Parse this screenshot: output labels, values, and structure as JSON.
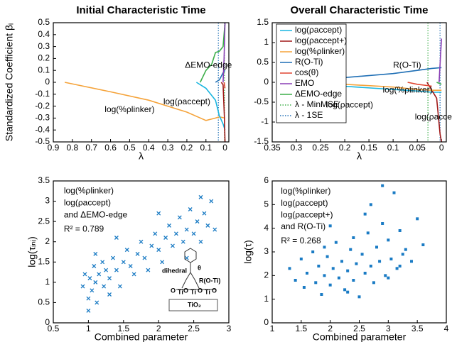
{
  "chart_data": [
    {
      "type": "line",
      "title": "Initial Characteristic Time",
      "xlabel": "λ",
      "ylabel": "Standardized Coefficient βᵢ",
      "xlim": [
        0.9,
        -0.02
      ],
      "xticks": [
        0.9,
        0.8,
        0.7,
        0.6,
        0.5,
        0.4,
        0.3,
        0.2,
        0.1,
        0
      ],
      "ylim": [
        -0.5,
        0.5
      ],
      "yticks": [
        -0.5,
        -0.4,
        -0.3,
        -0.2,
        -0.1,
        0,
        0.1,
        0.2,
        0.3,
        0.4,
        0.5
      ],
      "series": [
        {
          "color": "#f5a33a",
          "x": [
            0.84,
            0.6,
            0.4,
            0.2,
            0.1,
            0.05,
            0.03,
            0.0
          ],
          "values": [
            0,
            -0.08,
            -0.15,
            -0.25,
            -0.32,
            -0.3,
            -0.29,
            -0.3
          ]
        },
        {
          "color": "#1ab6e0",
          "x": [
            0.15,
            0.1,
            0.05,
            0.03,
            0.01,
            0.0
          ],
          "values": [
            0,
            -0.05,
            -0.15,
            -0.28,
            -0.35,
            -0.4
          ]
        },
        {
          "color": "#3cae49",
          "x": [
            0.13,
            0.1,
            0.07,
            0.05,
            0.03,
            0.01,
            0.0
          ],
          "values": [
            0,
            0.1,
            0.15,
            0.25,
            0.26,
            0.3,
            0.5
          ]
        },
        {
          "color": "#1f6fb5",
          "x": [
            0.05,
            0.03,
            0.02,
            0.01,
            0.0
          ],
          "values": [
            0,
            0.02,
            0.05,
            0.08,
            0.1
          ]
        },
        {
          "color": "#a01818",
          "x": [
            0.02,
            0.01,
            0.003,
            0.0
          ],
          "values": [
            0,
            -0.02,
            -0.3,
            -0.5
          ]
        },
        {
          "color": "#e04530",
          "x": [
            0.005,
            0.0
          ],
          "values": [
            0,
            -0.05
          ]
        },
        {
          "color": "#8a3fb5",
          "x": [
            0.01,
            0.005,
            0.0
          ],
          "values": [
            0,
            0.2,
            0.5
          ]
        }
      ],
      "vlines": [
        {
          "x": 0.035,
          "color": "#1f6fb5"
        },
        {
          "x": 0.003,
          "color": "#3cae49"
        }
      ],
      "annotations": [
        "ΔEMO-edge",
        "log(%ρlinker)",
        "log(ρaccept)"
      ]
    },
    {
      "type": "line",
      "title": "Overall Characteristic Time",
      "xlabel": "λ",
      "xlim": [
        0.35,
        -0.01
      ],
      "xticks": [
        0.35,
        0.3,
        0.25,
        0.2,
        0.15,
        0.1,
        0.05,
        0
      ],
      "ylim": [
        -1.5,
        1.5
      ],
      "yticks": [
        -1.5,
        -1,
        -0.5,
        0,
        0.5,
        1,
        1.5
      ],
      "series": [
        {
          "name": "log(ρaccept)",
          "color": "#1ab6e0",
          "x": [
            0.32,
            0.2,
            0.1,
            0.05,
            0.02,
            0.0
          ],
          "values": [
            0,
            -0.1,
            -0.18,
            -0.22,
            -0.25,
            -0.25
          ]
        },
        {
          "name": "log(ρaccept+)",
          "color": "#a01818",
          "x": [
            0.03,
            0.01,
            0.003,
            0.0
          ],
          "values": [
            0,
            -0.4,
            -1.3,
            -1.5
          ]
        },
        {
          "name": "log(%ρlinker)",
          "color": "#f5a33a",
          "x": [
            0.32,
            0.2,
            0.1,
            0.05,
            0.02,
            0.0
          ],
          "values": [
            0,
            -0.05,
            -0.12,
            -0.18,
            -0.2,
            -0.2
          ]
        },
        {
          "name": "R(O-Ti)",
          "color": "#1f6fb5",
          "x": [
            0.32,
            0.2,
            0.1,
            0.05,
            0.02,
            0.0
          ],
          "values": [
            0,
            0.12,
            0.22,
            0.3,
            0.35,
            0.37
          ]
        },
        {
          "name": "cos(θ)",
          "color": "#e04530",
          "x": [
            0.07,
            0.05,
            0.03,
            0.02
          ],
          "values": [
            0,
            -0.05,
            -0.08,
            -0.1
          ]
        },
        {
          "name": "EMO",
          "color": "#8a3fb5",
          "x": [
            0.005,
            0.0
          ],
          "values": [
            0,
            1.1
          ]
        },
        {
          "name": "ΔEMO-edge",
          "color": "#3cae49",
          "x": [
            0.01,
            0.0
          ],
          "values": [
            0,
            -0.05
          ]
        }
      ],
      "vlines": [
        {
          "name": "λ - MinMSE",
          "x": 0.028,
          "color": "#3cae49"
        },
        {
          "name": "λ - 1SE",
          "x": 0.003,
          "color": "#1f6fb5"
        }
      ],
      "annotations": [
        "R(O-Ti)",
        "log(%ρlinker)",
        "log(ρaccept)",
        "log(ρaccept+)"
      ]
    },
    {
      "type": "scatter",
      "marker": "cross",
      "color": "#1a7bc4",
      "xlabel": "Combined parameter",
      "ylabel": "log(τᵢₙᵢ)",
      "xlim": [
        0.5,
        3
      ],
      "xticks": [
        0.5,
        1,
        1.5,
        2,
        2.5,
        3
      ],
      "ylim": [
        0,
        3.5
      ],
      "yticks": [
        0,
        0.5,
        1,
        1.5,
        2,
        2.5,
        3,
        3.5
      ],
      "x": [
        0.92,
        0.95,
        1.0,
        1.02,
        1.05,
        1.08,
        1.1,
        1.12,
        1.15,
        1.2,
        1.22,
        1.25,
        1.3,
        1.35,
        1.4,
        1.45,
        1.5,
        1.55,
        1.6,
        1.65,
        1.7,
        1.75,
        1.8,
        1.85,
        1.9,
        1.95,
        2.0,
        2.05,
        2.1,
        2.15,
        2.2,
        2.25,
        2.3,
        2.35,
        2.4,
        2.45,
        2.5,
        2.55,
        2.6,
        2.65,
        2.7,
        2.75,
        2.8,
        1.0,
        1.4,
        2.0,
        1.1,
        2.4,
        1.3,
        2.6
      ],
      "values": [
        0.9,
        1.2,
        0.6,
        1.1,
        0.8,
        1.4,
        1.0,
        0.5,
        1.2,
        1.5,
        0.9,
        1.3,
        1.1,
        1.6,
        1.3,
        0.9,
        1.5,
        1.8,
        1.4,
        1.2,
        1.7,
        2.0,
        1.6,
        1.3,
        1.9,
        2.2,
        1.8,
        1.5,
        2.1,
        2.4,
        1.9,
        2.2,
        2.6,
        2.0,
        2.3,
        2.8,
        2.2,
        2.5,
        2.0,
        2.7,
        2.4,
        3.0,
        2.3,
        0.3,
        2.1,
        2.7,
        1.7,
        1.6,
        0.7,
        3.1
      ],
      "annotations": [
        "log(%ρlinker)",
        "log(ρaccept)",
        "and ΔEMO-edge",
        "R² = 0.789"
      ],
      "inset_labels": [
        "dihedral",
        "θ",
        "R(O-Ti)",
        "O",
        "Ti",
        "O",
        "Ti",
        "O",
        "Ti",
        "O",
        "TiO₂"
      ]
    },
    {
      "type": "scatter",
      "marker": "square",
      "color": "#1a7bc4",
      "xlabel": "Combined parameter",
      "ylabel": "log(τ)",
      "xlim": [
        1,
        4
      ],
      "xticks": [
        1,
        1.5,
        2,
        2.5,
        3,
        3.5,
        4
      ],
      "ylim": [
        0,
        6
      ],
      "yticks": [
        0,
        1,
        2,
        3,
        4,
        5,
        6
      ],
      "x": [
        1.3,
        1.4,
        1.5,
        1.55,
        1.6,
        1.7,
        1.75,
        1.8,
        1.85,
        1.9,
        1.95,
        2.0,
        2.05,
        2.1,
        2.15,
        2.2,
        2.25,
        2.3,
        2.35,
        2.4,
        2.45,
        2.5,
        2.55,
        2.6,
        2.65,
        2.7,
        2.75,
        2.8,
        2.85,
        2.9,
        2.95,
        3.0,
        3.05,
        3.1,
        3.15,
        3.2,
        3.25,
        3.3,
        3.4,
        3.5,
        3.6,
        2.0,
        2.3,
        2.6,
        2.9,
        3.0,
        1.9,
        2.4,
        2.7,
        3.2
      ],
      "values": [
        2.3,
        1.8,
        2.7,
        1.5,
        2.1,
        3.0,
        1.7,
        2.4,
        1.2,
        2.0,
        2.8,
        1.6,
        2.3,
        3.4,
        1.9,
        2.6,
        1.4,
        2.2,
        3.1,
        1.8,
        2.5,
        1.1,
        2.9,
        2.1,
        3.8,
        2.4,
        1.7,
        3.2,
        2.6,
        4.2,
        2.0,
        3.5,
        2.7,
        5.5,
        2.3,
        3.9,
        2.9,
        3.1,
        2.6,
        4.4,
        3.3,
        4.1,
        1.3,
        4.6,
        5.8,
        1.9,
        3.2,
        3.6,
        5.0,
        2.4
      ],
      "annotations": [
        "log(%ρlinker)",
        "log(ρaccept)",
        "log(ρaccept+)",
        "and R(O-Ti)",
        "R² = 0.268"
      ]
    }
  ]
}
